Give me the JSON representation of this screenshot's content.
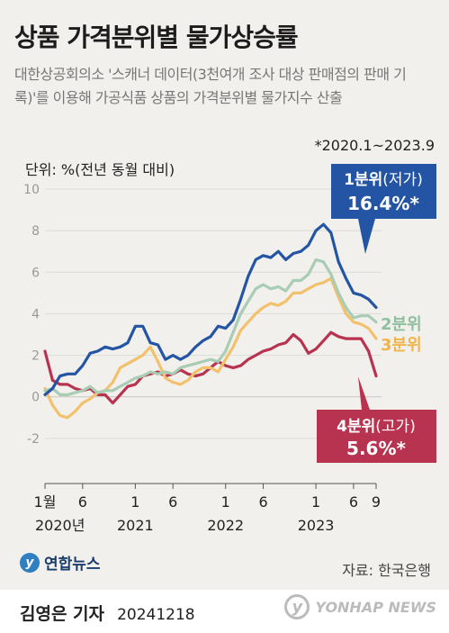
{
  "header": {
    "title": "상품 가격분위별 물가상승률",
    "subtitle": "대한상공회의소 '스캐너 데이터(3천여개 조사 대상 판매점의 판매 기록)'를 이용해 가공식품 상품의 가격분위별 물가지수 산출",
    "period_note": "*2020.1~2023.9",
    "unit": "단위: %(전년 동월 대비)"
  },
  "chart_data": {
    "type": "line",
    "ylim": [
      -4,
      10
    ],
    "y_ticks": [
      -2,
      0,
      2,
      4,
      6,
      8,
      10
    ],
    "x_ticks": [
      {
        "i": 0,
        "label": "1월"
      },
      {
        "i": 5,
        "label": "6"
      },
      {
        "i": 12,
        "label": "1"
      },
      {
        "i": 17,
        "label": "6"
      },
      {
        "i": 24,
        "label": "1"
      },
      {
        "i": 29,
        "label": "6"
      },
      {
        "i": 36,
        "label": "1"
      },
      {
        "i": 41,
        "label": "6"
      },
      {
        "i": 44,
        "label": "9"
      }
    ],
    "year_labels": [
      {
        "i": 2,
        "label": "2020년"
      },
      {
        "i": 12,
        "label": "2021"
      },
      {
        "i": 24,
        "label": "2022"
      },
      {
        "i": 36,
        "label": "2023"
      }
    ],
    "series": [
      {
        "name": "4분위(고가)",
        "color": "#b83350",
        "values": [
          2.2,
          0.8,
          0.6,
          0.6,
          0.4,
          0.3,
          0.4,
          0.1,
          0.1,
          -0.3,
          0.1,
          0.5,
          0.6,
          1.0,
          1.1,
          1.2,
          1.0,
          1.1,
          1.3,
          1.1,
          1.0,
          1.1,
          1.4,
          1.7,
          1.5,
          1.4,
          1.5,
          1.8,
          2.0,
          2.2,
          2.3,
          2.5,
          2.6,
          3.0,
          2.7,
          2.1,
          2.3,
          2.7,
          3.1,
          2.9,
          2.8,
          2.8,
          2.8,
          2.2,
          1.0
        ]
      },
      {
        "name": "3분위",
        "color": "#f2c16b",
        "values": [
          0.4,
          -0.4,
          -0.9,
          -1.0,
          -0.7,
          -0.3,
          -0.1,
          0.2,
          0.3,
          0.7,
          1.4,
          1.6,
          1.8,
          2.0,
          2.4,
          1.7,
          0.9,
          0.7,
          0.6,
          0.8,
          1.2,
          1.4,
          1.4,
          1.2,
          1.8,
          2.4,
          3.2,
          3.6,
          4.0,
          4.3,
          4.5,
          4.4,
          4.6,
          5.0,
          5.0,
          5.2,
          5.4,
          5.5,
          5.7,
          4.8,
          4.0,
          3.6,
          3.5,
          3.3,
          2.8
        ]
      },
      {
        "name": "2분위",
        "color": "#a8ccb4",
        "values": [
          0.3,
          0.4,
          0.1,
          0.1,
          0.2,
          0.3,
          0.5,
          0.2,
          0.3,
          0.3,
          0.5,
          0.7,
          0.9,
          1.0,
          1.2,
          1.1,
          1.2,
          1.1,
          1.4,
          1.5,
          1.6,
          1.7,
          1.8,
          1.7,
          2.2,
          3.1,
          4.0,
          4.6,
          5.2,
          5.4,
          5.2,
          5.3,
          5.1,
          5.6,
          5.6,
          5.9,
          6.6,
          6.5,
          5.9,
          5.0,
          4.3,
          3.8,
          3.9,
          3.9,
          3.6
        ]
      },
      {
        "name": "1분위(저가)",
        "color": "#2455a4",
        "values": [
          0.1,
          0.4,
          1.0,
          1.1,
          1.1,
          1.5,
          2.1,
          2.2,
          2.4,
          2.3,
          2.4,
          2.6,
          3.4,
          3.4,
          2.6,
          2.5,
          1.8,
          2.0,
          1.8,
          2.0,
          2.4,
          2.7,
          2.9,
          3.4,
          3.3,
          3.7,
          4.7,
          5.8,
          6.6,
          6.8,
          6.7,
          7.0,
          6.6,
          6.9,
          7.0,
          7.3,
          8.0,
          8.3,
          7.9,
          6.5,
          5.7,
          5.0,
          4.9,
          4.7,
          4.3
        ]
      }
    ],
    "callouts": {
      "q1": {
        "name": "1분위",
        "suffix": "(저가)",
        "value": "16.4%*"
      },
      "q4": {
        "name": "4분위",
        "suffix": "(고가)",
        "value": "5.6%*"
      },
      "q2": {
        "label": "2분위"
      },
      "q3": {
        "label": "3분위"
      }
    }
  },
  "footer": {
    "logo_text": "연합뉴스",
    "source": "자료: 한국은행",
    "reporter": "김영은 기자",
    "date": "20241218",
    "watermark": "YONHAP NEWS"
  }
}
